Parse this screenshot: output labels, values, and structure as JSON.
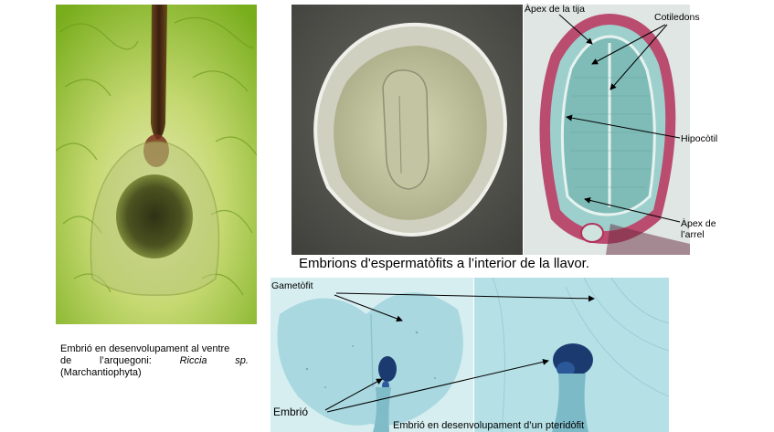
{
  "panel_left": {
    "caption_line1": "Embrió en desenvolupament al ventre",
    "caption_line2_a": "de",
    "caption_line2_b": "l’arquegoni:",
    "caption_line2_c": "Riccia",
    "caption_line2_d": "sp.",
    "caption_line3": "(Marchantiophyta)"
  },
  "panel_seed": {
    "caption": "Embrions d'espermatòfits a l’interior de la llavor.",
    "labels": {
      "shoot_apex": "Àpex de la tija",
      "cotyledons": "Cotiledons",
      "hypocotyl": "Hipocòtil",
      "root_apex_1": "Àpex de",
      "root_apex_2": "l’arrel"
    }
  },
  "panel_fern": {
    "label_gametophyte": "Gametòfit",
    "label_embryo": "Embrió",
    "caption": "Embrió en desenvolupament d’un pteridòfit"
  },
  "colors": {
    "riccia_green": "#8fc02c",
    "seed_gray": "#5e5e58",
    "section_teal": "#8ec8c5",
    "section_red": "#b4305a",
    "fern_blue": "#a9d8e0",
    "embryo_navy": "#1b3b70"
  }
}
